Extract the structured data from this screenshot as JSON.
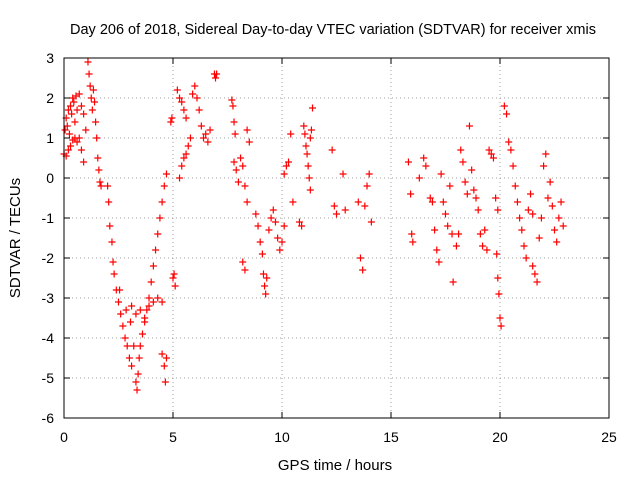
{
  "chart_data": {
    "type": "scatter",
    "title": "Day 206 of 2018, Sidereal Day-to-day VTEC variation (SDTVAR) for receiver xmis",
    "xlabel": "GPS time / hours",
    "ylabel": "SDTVAR / TECUs",
    "xlim": [
      0,
      25
    ],
    "ylim": [
      -6,
      3
    ],
    "x_ticks": [
      0,
      5,
      10,
      15,
      20,
      25
    ],
    "y_ticks": [
      -6,
      -5,
      -4,
      -3,
      -2,
      -1,
      0,
      1,
      2,
      3
    ],
    "x_tick_labels": [
      "0",
      "5",
      "10",
      "15",
      "20",
      "25"
    ],
    "y_tick_labels": [
      "-6",
      "-5",
      "-4",
      "-3",
      "-2",
      "-1",
      "0",
      "1",
      "2",
      "3"
    ],
    "grid": true,
    "marker": "+",
    "marker_color": "#ff0000",
    "series": [
      {
        "name": "SDTVAR",
        "points": [
          [
            0.0,
            0.6
          ],
          [
            0.05,
            1.2
          ],
          [
            0.1,
            1.5
          ],
          [
            0.15,
            1.3
          ],
          [
            0.2,
            1.7
          ],
          [
            0.25,
            1.1
          ],
          [
            0.3,
            1.8
          ],
          [
            0.35,
            1.6
          ],
          [
            0.4,
            2.0
          ],
          [
            0.45,
            1.9
          ],
          [
            0.5,
            1.4
          ],
          [
            0.55,
            2.05
          ],
          [
            0.6,
            1.7
          ],
          [
            0.7,
            2.1
          ],
          [
            0.8,
            1.8
          ],
          [
            0.9,
            1.6
          ],
          [
            1.0,
            1.2
          ],
          [
            0.1,
            0.55
          ],
          [
            0.2,
            0.7
          ],
          [
            0.3,
            0.8
          ],
          [
            0.4,
            0.95
          ],
          [
            0.5,
            1.0
          ],
          [
            0.6,
            0.9
          ],
          [
            0.7,
            1.0
          ],
          [
            0.8,
            0.7
          ],
          [
            0.9,
            0.4
          ],
          [
            1.1,
            2.9
          ],
          [
            1.15,
            2.6
          ],
          [
            1.2,
            2.3
          ],
          [
            1.25,
            2.0
          ],
          [
            1.3,
            1.7
          ],
          [
            1.35,
            2.2
          ],
          [
            1.4,
            1.9
          ],
          [
            1.45,
            1.4
          ],
          [
            1.5,
            1.0
          ],
          [
            1.55,
            0.5
          ],
          [
            1.6,
            0.2
          ],
          [
            1.65,
            -0.1
          ],
          [
            1.7,
            -0.2
          ],
          [
            2.0,
            -0.2
          ],
          [
            2.05,
            -0.6
          ],
          [
            2.1,
            -1.2
          ],
          [
            2.2,
            -1.6
          ],
          [
            2.25,
            -2.1
          ],
          [
            2.3,
            -2.4
          ],
          [
            2.4,
            -2.8
          ],
          [
            2.5,
            -3.1
          ],
          [
            2.55,
            -2.8
          ],
          [
            2.6,
            -3.4
          ],
          [
            2.7,
            -3.7
          ],
          [
            2.8,
            -4.0
          ],
          [
            2.85,
            -3.3
          ],
          [
            2.9,
            -4.2
          ],
          [
            3.0,
            -4.5
          ],
          [
            3.05,
            -3.6
          ],
          [
            3.1,
            -4.7
          ],
          [
            3.2,
            -4.2
          ],
          [
            3.3,
            -5.1
          ],
          [
            3.35,
            -5.3
          ],
          [
            3.4,
            -4.9
          ],
          [
            3.45,
            -4.5
          ],
          [
            3.5,
            -4.2
          ],
          [
            3.6,
            -3.9
          ],
          [
            3.7,
            -3.6
          ],
          [
            3.8,
            -3.3
          ],
          [
            3.9,
            -3.0
          ],
          [
            4.0,
            -2.6
          ],
          [
            4.1,
            -2.2
          ],
          [
            4.2,
            -1.8
          ],
          [
            4.3,
            -1.4
          ],
          [
            4.4,
            -1.0
          ],
          [
            4.5,
            -0.6
          ],
          [
            4.6,
            -0.2
          ],
          [
            4.7,
            0.1
          ],
          [
            3.1,
            -3.2
          ],
          [
            3.3,
            -3.4
          ],
          [
            3.5,
            -3.3
          ],
          [
            3.7,
            -3.5
          ],
          [
            3.9,
            -3.2
          ],
          [
            4.1,
            -3.1
          ],
          [
            4.3,
            -3.0
          ],
          [
            4.5,
            -3.1
          ],
          [
            4.5,
            -4.4
          ],
          [
            4.6,
            -4.7
          ],
          [
            4.65,
            -5.1
          ],
          [
            4.7,
            -4.5
          ],
          [
            4.9,
            1.4
          ],
          [
            4.95,
            1.5
          ],
          [
            5.0,
            -2.5
          ],
          [
            5.1,
            -2.7
          ],
          [
            5.05,
            -2.4
          ],
          [
            5.2,
            2.2
          ],
          [
            5.3,
            2.0
          ],
          [
            5.4,
            1.9
          ],
          [
            5.5,
            1.7
          ],
          [
            5.6,
            1.5
          ],
          [
            5.3,
            0.0
          ],
          [
            5.4,
            0.3
          ],
          [
            5.5,
            0.5
          ],
          [
            5.6,
            0.6
          ],
          [
            5.7,
            0.8
          ],
          [
            5.8,
            1.0
          ],
          [
            5.9,
            2.1
          ],
          [
            6.0,
            2.3
          ],
          [
            6.1,
            2.0
          ],
          [
            6.2,
            1.7
          ],
          [
            6.3,
            1.3
          ],
          [
            6.4,
            1.0
          ],
          [
            6.5,
            1.1
          ],
          [
            6.6,
            0.9
          ],
          [
            6.7,
            1.2
          ],
          [
            6.9,
            2.6
          ],
          [
            7.0,
            2.6
          ],
          [
            6.95,
            2.5
          ],
          [
            7.7,
            1.95
          ],
          [
            7.75,
            1.8
          ],
          [
            7.8,
            1.4
          ],
          [
            7.85,
            1.1
          ],
          [
            7.8,
            0.4
          ],
          [
            7.9,
            0.2
          ],
          [
            8.0,
            -0.1
          ],
          [
            8.1,
            0.5
          ],
          [
            8.2,
            0.3
          ],
          [
            8.3,
            -0.2
          ],
          [
            8.4,
            -0.6
          ],
          [
            8.2,
            -2.1
          ],
          [
            8.3,
            -2.3
          ],
          [
            8.4,
            1.2
          ],
          [
            8.5,
            0.9
          ],
          [
            8.8,
            -0.9
          ],
          [
            8.9,
            -1.2
          ],
          [
            9.0,
            -1.6
          ],
          [
            9.1,
            -1.9
          ],
          [
            9.15,
            -2.4
          ],
          [
            9.2,
            -2.7
          ],
          [
            9.25,
            -2.9
          ],
          [
            9.3,
            -2.5
          ],
          [
            9.4,
            -1.3
          ],
          [
            9.5,
            -1.0
          ],
          [
            9.6,
            -0.8
          ],
          [
            9.7,
            -1.1
          ],
          [
            9.8,
            -1.5
          ],
          [
            9.9,
            -1.8
          ],
          [
            10.0,
            -1.6
          ],
          [
            10.1,
            -1.2
          ],
          [
            10.1,
            0.1
          ],
          [
            10.2,
            0.3
          ],
          [
            10.3,
            0.4
          ],
          [
            10.4,
            1.1
          ],
          [
            10.5,
            -0.6
          ],
          [
            10.8,
            -1.1
          ],
          [
            10.9,
            -1.2
          ],
          [
            11.0,
            1.3
          ],
          [
            11.05,
            1.1
          ],
          [
            11.1,
            0.8
          ],
          [
            11.15,
            0.6
          ],
          [
            11.2,
            0.3
          ],
          [
            11.25,
            0.0
          ],
          [
            11.3,
            -0.3
          ],
          [
            11.35,
            1.2
          ],
          [
            11.4,
            1.75
          ],
          [
            11.3,
            1.0
          ],
          [
            12.3,
            0.7
          ],
          [
            12.4,
            -0.7
          ],
          [
            12.5,
            -0.9
          ],
          [
            12.8,
            0.1
          ],
          [
            12.9,
            -0.8
          ],
          [
            13.5,
            -0.6
          ],
          [
            13.6,
            -2.0
          ],
          [
            13.7,
            -2.3
          ],
          [
            13.8,
            -0.7
          ],
          [
            13.9,
            -0.2
          ],
          [
            14.0,
            0.1
          ],
          [
            14.1,
            -1.1
          ],
          [
            15.8,
            0.4
          ],
          [
            15.9,
            -0.4
          ],
          [
            15.95,
            -1.4
          ],
          [
            16.0,
            -1.6
          ],
          [
            16.3,
            0.0
          ],
          [
            16.5,
            0.5
          ],
          [
            16.6,
            0.3
          ],
          [
            16.8,
            -0.5
          ],
          [
            16.9,
            -0.6
          ],
          [
            17.0,
            -1.3
          ],
          [
            17.1,
            -1.8
          ],
          [
            17.2,
            -2.1
          ],
          [
            17.3,
            0.1
          ],
          [
            17.4,
            -0.6
          ],
          [
            17.5,
            -0.9
          ],
          [
            17.6,
            -1.2
          ],
          [
            17.7,
            -0.2
          ],
          [
            17.8,
            -1.4
          ],
          [
            17.85,
            -2.6
          ],
          [
            18.0,
            -1.7
          ],
          [
            18.1,
            -1.4
          ],
          [
            18.2,
            0.7
          ],
          [
            18.3,
            0.4
          ],
          [
            18.4,
            -0.1
          ],
          [
            18.5,
            -0.4
          ],
          [
            18.6,
            1.3
          ],
          [
            18.7,
            0.2
          ],
          [
            18.8,
            -0.3
          ],
          [
            18.9,
            -0.5
          ],
          [
            19.0,
            -0.8
          ],
          [
            19.1,
            -1.4
          ],
          [
            19.2,
            -1.7
          ],
          [
            19.3,
            -1.3
          ],
          [
            19.4,
            -1.8
          ],
          [
            19.5,
            0.7
          ],
          [
            19.6,
            0.6
          ],
          [
            19.7,
            0.5
          ],
          [
            19.8,
            -0.5
          ],
          [
            19.9,
            -0.8
          ],
          [
            19.9,
            -2.5
          ],
          [
            19.95,
            -2.9
          ],
          [
            20.0,
            -3.5
          ],
          [
            20.05,
            -3.7
          ],
          [
            19.85,
            -1.9
          ],
          [
            20.2,
            1.8
          ],
          [
            20.3,
            1.6
          ],
          [
            20.4,
            0.9
          ],
          [
            20.5,
            0.7
          ],
          [
            20.6,
            0.3
          ],
          [
            20.7,
            -0.2
          ],
          [
            20.8,
            -0.6
          ],
          [
            20.9,
            -1.0
          ],
          [
            21.0,
            -1.3
          ],
          [
            21.1,
            -1.7
          ],
          [
            21.2,
            -2.0
          ],
          [
            21.3,
            -0.8
          ],
          [
            21.4,
            -0.4
          ],
          [
            21.5,
            -0.9
          ],
          [
            21.5,
            -2.2
          ],
          [
            21.6,
            -2.4
          ],
          [
            21.7,
            -2.6
          ],
          [
            21.8,
            -1.5
          ],
          [
            21.9,
            -1.0
          ],
          [
            22.0,
            0.3
          ],
          [
            22.1,
            0.6
          ],
          [
            22.2,
            -0.5
          ],
          [
            22.3,
            -0.1
          ],
          [
            22.4,
            -0.7
          ],
          [
            22.5,
            -1.3
          ],
          [
            22.6,
            -1.6
          ],
          [
            22.7,
            -1.0
          ],
          [
            22.8,
            -0.6
          ],
          [
            22.9,
            -1.2
          ]
        ]
      }
    ]
  }
}
